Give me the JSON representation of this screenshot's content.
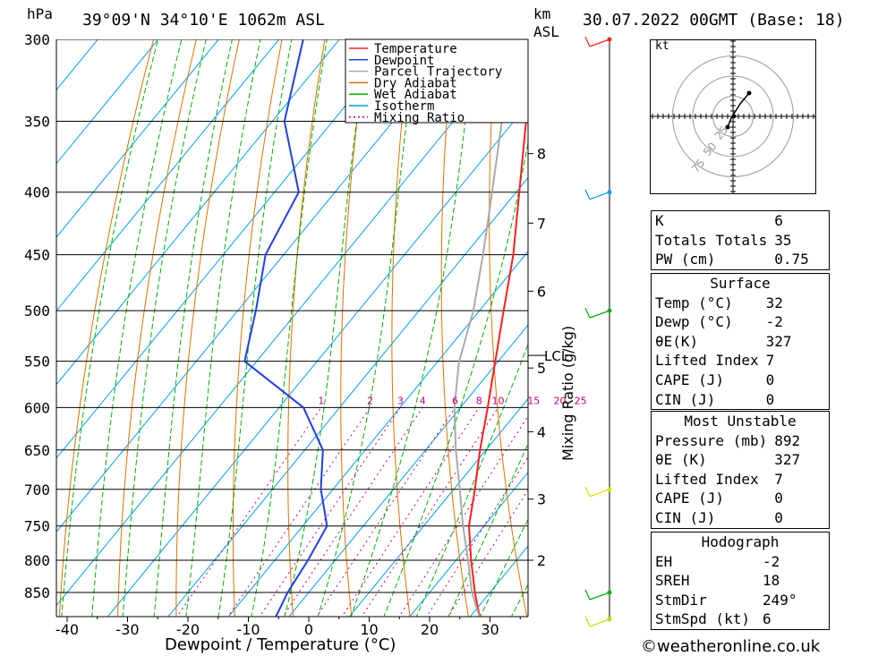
{
  "header": {
    "location": "39°09'N 34°10'E 1062m ASL",
    "datetime": "30.07.2022 00GMT (Base: 18)",
    "left_unit": "hPa",
    "km_unit": "km",
    "asl_unit": "ASL"
  },
  "chart_data": {
    "type": "line",
    "subtype": "skew-T log-p diagram",
    "xlabel": "Dewpoint / Temperature (°C)",
    "ylabel_left": "hPa",
    "ylabel_right": "Mixing Ratio (g/kg)",
    "pressure_levels": [
      300,
      350,
      400,
      450,
      500,
      550,
      600,
      650,
      700,
      750,
      800,
      850
    ],
    "temperature_ticks": [
      -40,
      -30,
      -20,
      -10,
      0,
      10,
      20,
      30
    ],
    "km_ticks": [
      {
        "km": "8",
        "p": 372
      },
      {
        "km": "7",
        "p": 424
      },
      {
        "km": "6",
        "p": 482
      },
      {
        "km": "5",
        "p": 557
      },
      {
        "km": "4",
        "p": 628
      },
      {
        "km": "3",
        "p": 713
      },
      {
        "km": "2",
        "p": 800
      }
    ],
    "lcl_label": "LCL",
    "lcl_p": 544,
    "mixing_ratio_labels": [
      "1",
      "2",
      "3",
      "4",
      "6",
      "8",
      "10",
      "15",
      "20",
      "25"
    ],
    "mixing_ratio_values": [
      1,
      2,
      3,
      4,
      6,
      8,
      10,
      15,
      20,
      25
    ],
    "mixing_label_p": 600,
    "legend": [
      "Temperature",
      "Dewpoint",
      "Parcel Trajectory",
      "Dry Adiabat",
      "Wet Adiabat",
      "Isotherm",
      "Mixing Ratio"
    ],
    "colors": {
      "temperature": "#ff2020",
      "dewpoint": "#2040e0",
      "parcel": "#aaaaaa",
      "dry_adiabat": "#e07000",
      "wet_adiabat": "#00b000",
      "isotherm": "#00a0ee",
      "mixing_ratio": "#c00080"
    },
    "series": [
      {
        "name": "Temperature",
        "points": [
          [
            894,
            32
          ],
          [
            850,
            27.5
          ],
          [
            800,
            22.5
          ],
          [
            750,
            17.5
          ],
          [
            700,
            13.5
          ],
          [
            650,
            9
          ],
          [
            600,
            4.5
          ],
          [
            550,
            -0.5
          ],
          [
            500,
            -6
          ],
          [
            450,
            -12
          ],
          [
            400,
            -19.5
          ],
          [
            350,
            -28
          ],
          [
            345,
            -28.5
          ]
        ]
      },
      {
        "name": "Dewpoint",
        "points": [
          [
            894,
            -2
          ],
          [
            850,
            -3.5
          ],
          [
            800,
            -4.5
          ],
          [
            750,
            -6
          ],
          [
            700,
            -12
          ],
          [
            650,
            -17
          ],
          [
            600,
            -26
          ],
          [
            550,
            -42
          ],
          [
            500,
            -47
          ],
          [
            450,
            -53
          ],
          [
            400,
            -56
          ],
          [
            350,
            -68
          ],
          [
            300,
            -76
          ]
        ]
      },
      {
        "name": "Parcel Trajectory",
        "points": [
          [
            894,
            32
          ],
          [
            850,
            27
          ],
          [
            800,
            22
          ],
          [
            750,
            16.5
          ],
          [
            700,
            11
          ],
          [
            650,
            5
          ],
          [
            600,
            -1
          ],
          [
            550,
            -6.5
          ],
          [
            544,
            -7
          ],
          [
            500,
            -11
          ],
          [
            450,
            -17
          ],
          [
            400,
            -24
          ],
          [
            350,
            -32
          ],
          [
            300,
            -41
          ]
        ]
      }
    ],
    "hodograph": {
      "unit": "kt",
      "rings": [
        25,
        50,
        75
      ],
      "ring_labels": [
        "25",
        "50",
        "75"
      ]
    }
  },
  "wind_barbs": [
    {
      "p": 300,
      "color": "#ff2020"
    },
    {
      "p": 400,
      "color": "#00a0ee"
    },
    {
      "p": 500,
      "color": "#00b000"
    },
    {
      "p": 700,
      "color": "#e0e000"
    },
    {
      "p": 850,
      "color": "#00b000"
    },
    {
      "p": 894,
      "color": "#c0e000"
    }
  ],
  "indices": {
    "top": [
      {
        "label": "K",
        "value": "6"
      },
      {
        "label": "Totals Totals",
        "value": "35"
      },
      {
        "label": "PW (cm)",
        "value": "0.75"
      }
    ],
    "surface_title": "Surface",
    "surface": [
      {
        "label": "Temp (°C)",
        "value": "32"
      },
      {
        "label": "Dewp (°C)",
        "value": "-2"
      },
      {
        "label": "θE(K)",
        "value": "327"
      },
      {
        "label": "Lifted Index",
        "value": "7"
      },
      {
        "label": "CAPE (J)",
        "value": "0"
      },
      {
        "label": "CIN (J)",
        "value": "0"
      }
    ],
    "mu_title": "Most Unstable",
    "mu": [
      {
        "label": "Pressure (mb)",
        "value": "892"
      },
      {
        "label": "θE (K)",
        "value": "327"
      },
      {
        "label": "Lifted Index",
        "value": "7"
      },
      {
        "label": "CAPE (J)",
        "value": "0"
      },
      {
        "label": "CIN (J)",
        "value": "0"
      }
    ],
    "hodo_title": "Hodograph",
    "hodo": [
      {
        "label": "EH",
        "value": "-2"
      },
      {
        "label": "SREH",
        "value": "18"
      },
      {
        "label": "StmDir",
        "value": "249°"
      },
      {
        "label": "StmSpd (kt)",
        "value": "6"
      }
    ]
  },
  "footer": {
    "copyright": "©weatheronline.co.uk"
  }
}
